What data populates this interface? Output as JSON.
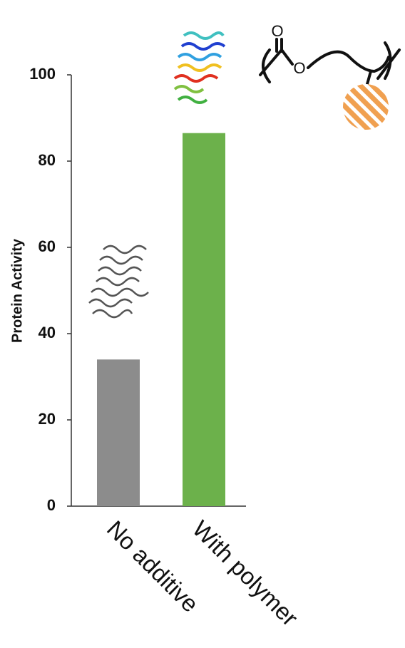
{
  "chart_data": {
    "type": "bar",
    "y_label": "Protein Activity",
    "categories": [
      "No additive",
      "With polymer"
    ],
    "values": [
      34,
      86.5
    ],
    "colors": [
      "#8c8c8c",
      "#6cb14b"
    ],
    "ylim": [
      0,
      100
    ],
    "yticks": [
      0,
      20,
      40,
      60,
      80,
      100
    ],
    "grid": false,
    "annotations": [
      "O",
      "O"
    ]
  }
}
